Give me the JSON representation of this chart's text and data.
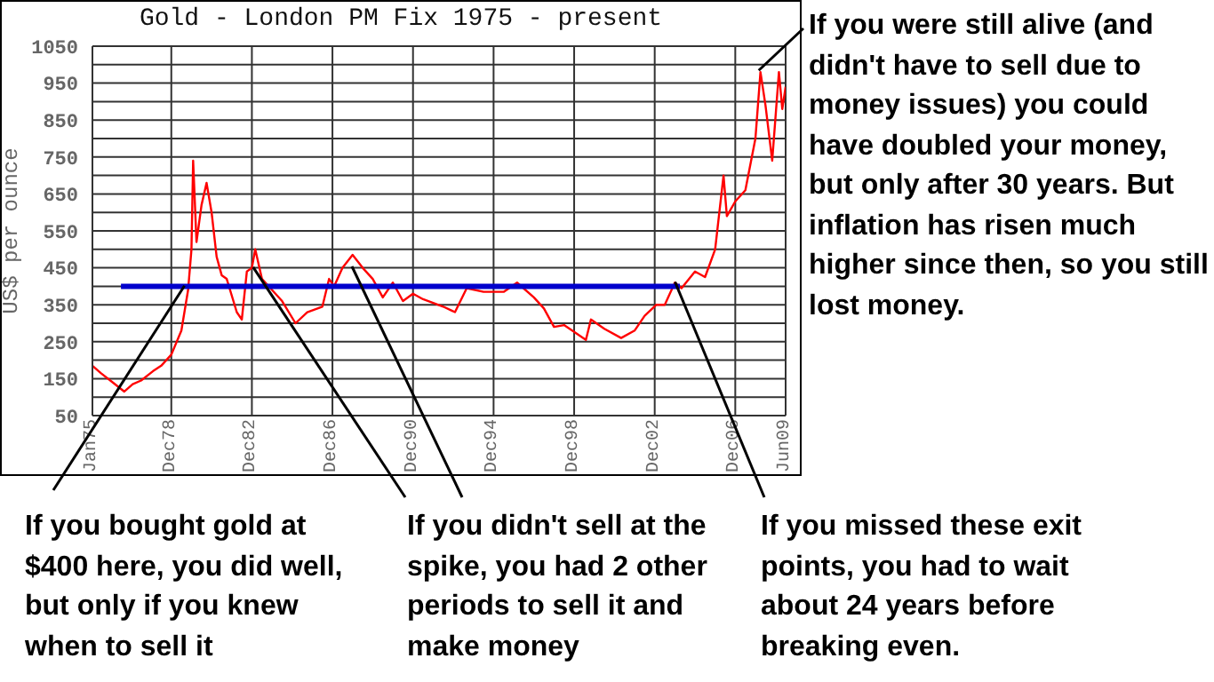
{
  "chart_data": {
    "type": "line",
    "title": "Gold - London PM Fix 1975 - present",
    "ylabel": "US$ per ounce",
    "xlim": [
      "1975-01",
      "2009-06"
    ],
    "xticks": [
      {
        "value": "1975-01",
        "label": "Jan75"
      },
      {
        "value": "1978-12",
        "label": "Dec78"
      },
      {
        "value": "1982-12",
        "label": "Dec82"
      },
      {
        "value": "1986-12",
        "label": "Dec86"
      },
      {
        "value": "1990-12",
        "label": "Dec90"
      },
      {
        "value": "1994-12",
        "label": "Dec94"
      },
      {
        "value": "1998-12",
        "label": "Dec98"
      },
      {
        "value": "2002-12",
        "label": "Dec02"
      },
      {
        "value": "2006-12",
        "label": "Dec06"
      },
      {
        "value": "2009-06",
        "label": "Jun09"
      }
    ],
    "ylim": [
      50,
      1050
    ],
    "yticks": [
      50,
      {
        "value": 100,
        "label": null
      },
      150,
      {
        "value": 200,
        "label": null
      },
      250,
      {
        "value": 300,
        "label": null
      },
      350,
      {
        "value": 400,
        "label": null
      },
      450,
      {
        "value": 500,
        "label": null
      },
      550,
      {
        "value": 600,
        "label": null
      },
      650,
      {
        "value": 700,
        "label": null
      },
      750,
      {
        "value": 800,
        "label": null
      },
      850,
      {
        "value": 900,
        "label": null
      },
      950,
      {
        "value": 1000,
        "label": null
      },
      1050
    ],
    "grid": true,
    "marker": "none",
    "series": [
      {
        "color": "#ff0000",
        "x": [
          "1975-01",
          "1975-06",
          "1976-01",
          "1976-08",
          "1977-01",
          "1977-06",
          "1978-01",
          "1978-06",
          "1978-12",
          "1979-06",
          "1979-10",
          "1979-12",
          "1980-01",
          "1980-03",
          "1980-06",
          "1980-09",
          "1980-12",
          "1981-03",
          "1981-06",
          "1981-09",
          "1982-03",
          "1982-06",
          "1982-09",
          "1982-12",
          "1983-02",
          "1983-06",
          "1983-12",
          "1984-06",
          "1985-02",
          "1985-09",
          "1986-06",
          "1986-10",
          "1987-01",
          "1987-06",
          "1987-12",
          "1988-06",
          "1988-12",
          "1989-06",
          "1989-12",
          "1990-06",
          "1990-12",
          "1991-06",
          "1992-06",
          "1993-01",
          "1993-08",
          "1994-06",
          "1995-06",
          "1996-02",
          "1996-12",
          "1997-06",
          "1997-12",
          "1998-06",
          "1999-07",
          "1999-10",
          "2000-06",
          "2001-04",
          "2001-12",
          "2002-06",
          "2003-01",
          "2003-06",
          "2003-12",
          "2004-04",
          "2004-12",
          "2005-06",
          "2005-12",
          "2006-05",
          "2006-07",
          "2006-12",
          "2007-06",
          "2007-12",
          "2008-03",
          "2008-06",
          "2008-10",
          "2008-12",
          "2009-02",
          "2009-04",
          "2009-06"
        ],
        "values": [
          185,
          165,
          140,
          115,
          135,
          145,
          170,
          185,
          215,
          280,
          390,
          500,
          740,
          520,
          620,
          680,
          600,
          480,
          430,
          420,
          330,
          310,
          440,
          450,
          500,
          420,
          390,
          360,
          300,
          330,
          345,
          420,
          400,
          450,
          485,
          450,
          420,
          370,
          410,
          360,
          380,
          365,
          345,
          330,
          395,
          385,
          385,
          410,
          370,
          340,
          290,
          295,
          255,
          310,
          285,
          260,
          280,
          320,
          350,
          350,
          410,
          395,
          440,
          425,
          500,
          700,
          590,
          630,
          660,
          800,
          980,
          890,
          740,
          860,
          980,
          880,
          940
        ]
      },
      {
        "color": "#0000cc",
        "x": [
          "1976-06",
          "2004-03"
        ],
        "values": [
          400,
          400
        ]
      }
    ],
    "annotations": [
      {
        "text": "If you bought gold at $400 here, you did well, but only if you knew when to sell it",
        "x": "1979-08",
        "y": 400
      },
      {
        "text": "If you didn't sell at the spike, you had 2 other periods to sell it and make money",
        "x": "1983-01",
        "y": 450
      },
      {
        "text": "If you missed these exit points, you had to wait about 24 years before breaking even.",
        "x": "2004-01",
        "y": 410
      },
      {
        "text": "If you were still alive (and didn't have to sell due to money issues) you could have doubled your money, but only after 30 years. But inflation has risen much higher since then, so you still lost money.",
        "x": "2008-03",
        "y": 980
      }
    ]
  }
}
